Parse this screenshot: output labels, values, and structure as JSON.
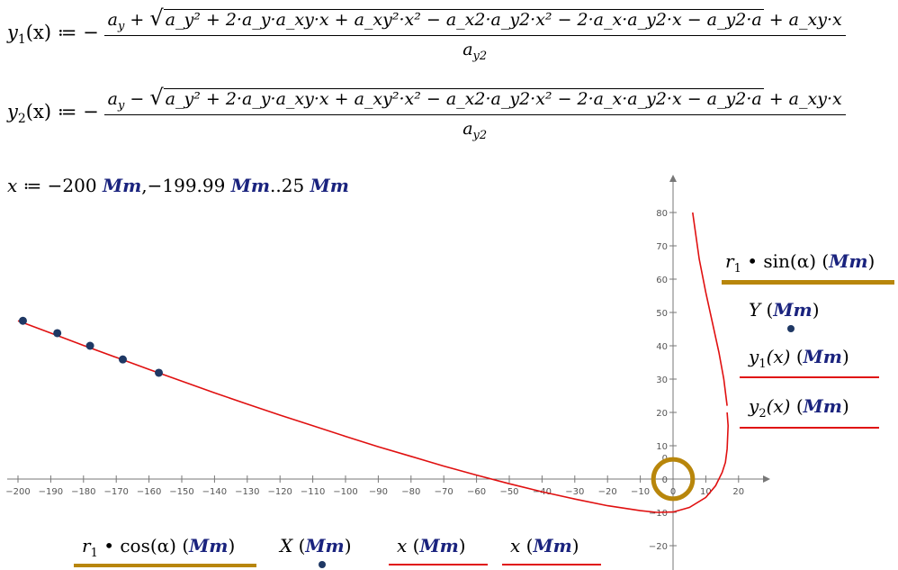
{
  "equations": {
    "y1": {
      "lhs": "y",
      "lhs_sub": "1",
      "lhs_arg": "(x) ≔ −",
      "num_pre": "a",
      "num_pre_sub": "y",
      "sign": " + ",
      "radicand": "a_y² + 2·a_y·a_xy·x + a_xy²·x² − a_x2·a_y2·x² − 2·a_x·a_y2·x − a_y2·a",
      "num_post": " + a_xy·x",
      "den": "a",
      "den_sub": "y2"
    },
    "y2": {
      "lhs": "y",
      "lhs_sub": "2",
      "lhs_arg": "(x) ≔ −",
      "num_pre": "a",
      "num_pre_sub": "y",
      "sign": " − ",
      "radicand": "a_y² + 2·a_y·a_xy·x + a_xy²·x² − a_x2·a_y2·x² − 2·a_x·a_y2·x − a_y2·a",
      "num_post": " + a_xy·x",
      "den": "a",
      "den_sub": "y2"
    }
  },
  "range_def": {
    "var": "x",
    "assign": " ≔ −200 ",
    "unit1": "Mm",
    "mid": ",−199.99 ",
    "unit2": "Mm",
    "end": "..25 ",
    "unit3": "Mm"
  },
  "chart_data": {
    "type": "line",
    "xlim": [
      -200,
      25
    ],
    "ylim": [
      -25,
      85
    ],
    "x_ticks": [
      -200,
      -190,
      -180,
      -170,
      -160,
      -150,
      -140,
      -130,
      -120,
      -110,
      -100,
      -90,
      -80,
      -70,
      -60,
      -50,
      -40,
      -30,
      -20,
      -10,
      0,
      10,
      20
    ],
    "y_ticks": [
      -20,
      -10,
      0,
      10,
      20,
      30,
      40,
      50,
      60,
      70,
      80
    ],
    "series": [
      {
        "name": "y₁(x) (Mm)",
        "color": "#e01010",
        "points": [
          [
            -200,
            47.5
          ],
          [
            -190,
            43.8
          ],
          [
            -180,
            40.1
          ],
          [
            -170,
            36.5
          ],
          [
            -160,
            32.9
          ],
          [
            -150,
            29.4
          ],
          [
            -140,
            25.9
          ],
          [
            -130,
            22.5
          ],
          [
            -120,
            19.2
          ],
          [
            -110,
            16.0
          ],
          [
            -100,
            12.8
          ],
          [
            -90,
            9.7
          ],
          [
            -80,
            6.8
          ],
          [
            -70,
            3.9
          ],
          [
            -60,
            1.2
          ],
          [
            -50,
            -1.4
          ],
          [
            -40,
            -3.8
          ],
          [
            -30,
            -6.0
          ],
          [
            -20,
            -8.0
          ],
          [
            -10,
            -9.5
          ],
          [
            -5,
            -10.0
          ],
          [
            0,
            -9.9
          ],
          [
            5,
            -8.5
          ],
          [
            10,
            -5.5
          ],
          [
            13,
            -2.0
          ],
          [
            15,
            2.0
          ],
          [
            16,
            5.0
          ],
          [
            16.5,
            9.0
          ],
          [
            16.8,
            16.0
          ],
          [
            16.5,
            20.0
          ]
        ]
      },
      {
        "name": "y₂(x) (Mm)",
        "color": "#e01010",
        "points": [
          [
            16.5,
            22.0
          ],
          [
            15.5,
            30.0
          ],
          [
            14,
            38.0
          ],
          [
            12,
            47.0
          ],
          [
            10,
            56.0
          ],
          [
            8,
            66.0
          ],
          [
            6,
            80.0
          ]
        ]
      },
      {
        "name": "Y (Mm)",
        "color": "#1f3864",
        "type": "scatter",
        "points": [
          [
            -198.5,
            47.5
          ],
          [
            -188,
            43.8
          ],
          [
            -178,
            40.0
          ],
          [
            -168,
            35.9
          ],
          [
            -157,
            31.9
          ]
        ]
      },
      {
        "name": "r₁·sin(α) (Mm)",
        "color": "#b8860b",
        "type": "circle",
        "center": [
          0,
          0
        ],
        "radius": 6
      }
    ]
  },
  "legend_y": {
    "r1sin": {
      "a": "r",
      "sub": "1",
      "b": " • sin",
      "c": "(α)",
      "unit": "Mm"
    },
    "Y": {
      "a": "Y",
      "unit": "Mm"
    },
    "y1": {
      "a": "y",
      "sub": "1",
      "b": "(x)",
      "unit": "Mm"
    },
    "y2": {
      "a": "y",
      "sub": "2",
      "b": "(x)",
      "unit": "Mm"
    }
  },
  "legend_x": {
    "r1cos": {
      "a": "r",
      "sub": "1",
      "b": " • cos",
      "c": "(α)",
      "unit": "Mm"
    },
    "X": {
      "a": "X",
      "unit": "Mm"
    },
    "x1": {
      "a": "x",
      "unit": "Mm"
    },
    "x2": {
      "a": "x",
      "unit": "Mm"
    }
  },
  "colors": {
    "red": "#e01010",
    "gold": "#b8860b",
    "navy": "#1f3864",
    "unit_blue": "#1a237e"
  }
}
